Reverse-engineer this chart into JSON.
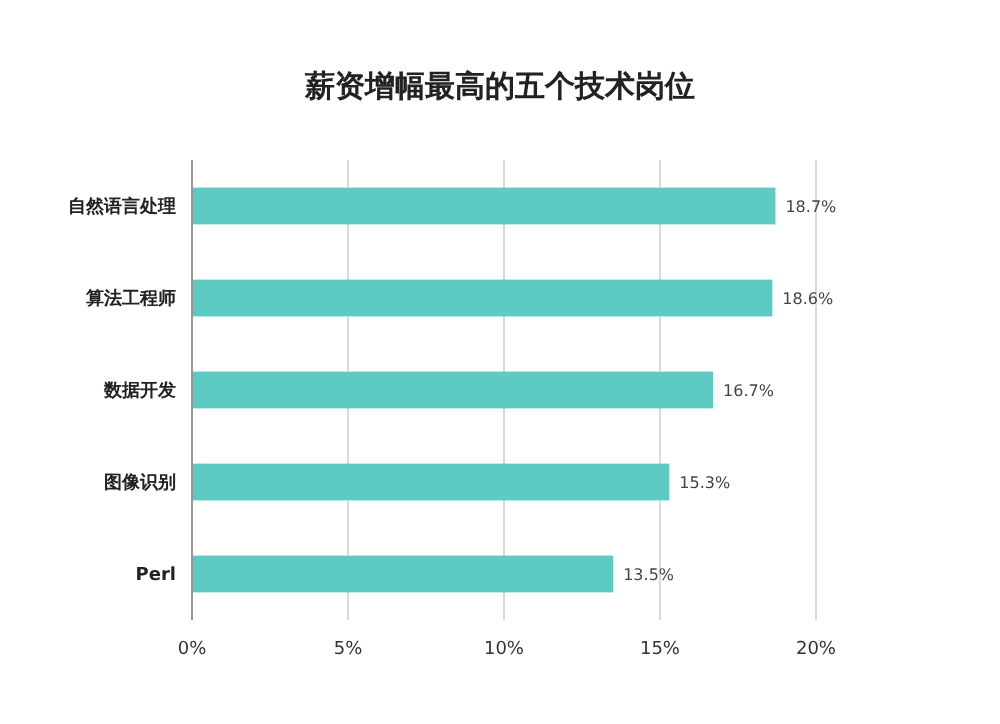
{
  "chart_data": {
    "type": "bar",
    "orientation": "horizontal",
    "title": "薪资增幅最高的五个技术岗位",
    "categories": [
      "自然语言处理",
      "算法工程师",
      "数据开发",
      "图像识别",
      "Perl"
    ],
    "values": [
      18.7,
      18.6,
      16.7,
      15.3,
      13.5
    ],
    "value_labels": [
      "18.7%",
      "18.6%",
      "16.7%",
      "15.3%",
      "13.5%"
    ],
    "color": "#5ecbc3",
    "xlim": [
      0,
      20
    ],
    "xticks": [
      {
        "value": 0,
        "label": "0%"
      },
      {
        "value": 5,
        "label": "5%"
      },
      {
        "value": 10,
        "label": "10%"
      },
      {
        "value": 15,
        "label": "15%"
      },
      {
        "value": 20,
        "label": "20%"
      }
    ],
    "grid": "x"
  }
}
